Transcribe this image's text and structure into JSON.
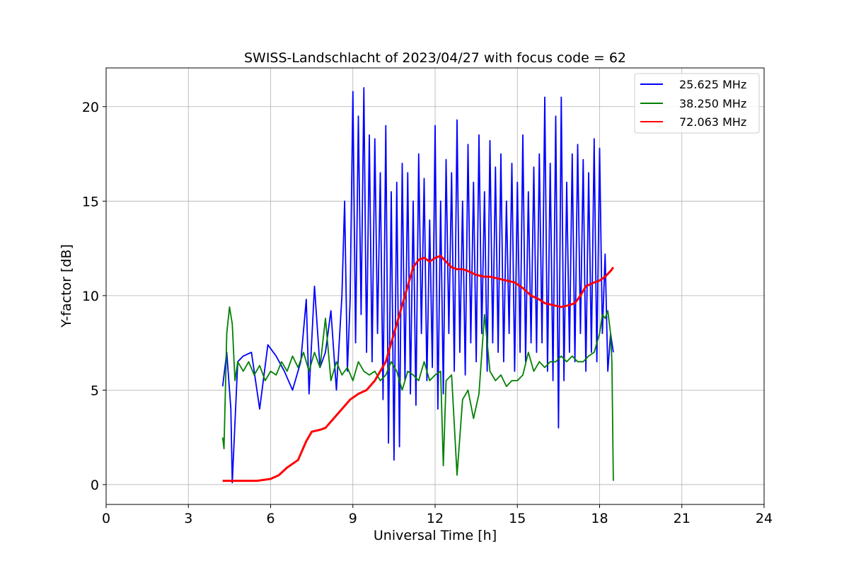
{
  "chart_data": {
    "type": "line",
    "title": "SWISS-Landschlacht of 2023/04/27 with focus code = 62",
    "xlabel": "Universal Time [h]",
    "ylabel": "Y-factor [dB]",
    "xlim": [
      0,
      24
    ],
    "ylim": [
      -1.05,
      22.05
    ],
    "xticks": [
      0,
      3,
      6,
      9,
      12,
      15,
      18,
      21,
      24
    ],
    "yticks": [
      0,
      5,
      10,
      15,
      20
    ],
    "grid": true,
    "legend_position": "top-right",
    "series": [
      {
        "name": "25.625 MHz",
        "color": "#0000ff",
        "x": [
          4.25,
          4.4,
          4.55,
          4.6,
          4.8,
          5.0,
          5.3,
          5.6,
          5.9,
          6.2,
          6.5,
          6.8,
          7.1,
          7.3,
          7.4,
          7.6,
          7.8,
          8.0,
          8.2,
          8.4,
          8.6,
          8.7,
          8.8,
          8.9,
          9.0,
          9.1,
          9.2,
          9.3,
          9.4,
          9.5,
          9.6,
          9.7,
          9.8,
          9.9,
          10.0,
          10.1,
          10.2,
          10.3,
          10.4,
          10.5,
          10.6,
          10.7,
          10.8,
          10.9,
          11.0,
          11.1,
          11.2,
          11.3,
          11.4,
          11.5,
          11.6,
          11.7,
          11.8,
          11.9,
          12.0,
          12.1,
          12.2,
          12.3,
          12.4,
          12.5,
          12.6,
          12.7,
          12.8,
          12.9,
          13.0,
          13.1,
          13.2,
          13.3,
          13.4,
          13.5,
          13.6,
          13.7,
          13.8,
          13.9,
          14.0,
          14.1,
          14.2,
          14.3,
          14.4,
          14.5,
          14.6,
          14.7,
          14.8,
          14.9,
          15.0,
          15.1,
          15.2,
          15.3,
          15.4,
          15.5,
          15.6,
          15.7,
          15.8,
          15.9,
          16.0,
          16.1,
          16.2,
          16.3,
          16.4,
          16.5,
          16.6,
          16.7,
          16.8,
          16.9,
          17.0,
          17.1,
          17.2,
          17.3,
          17.4,
          17.5,
          17.6,
          17.7,
          17.8,
          17.9,
          18.0,
          18.1,
          18.2,
          18.3,
          18.4,
          18.5
        ],
        "y": [
          5.2,
          7.0,
          4.0,
          0.1,
          6.5,
          6.8,
          7.0,
          4.0,
          7.4,
          6.8,
          6.0,
          5.0,
          6.5,
          9.8,
          4.8,
          10.5,
          6.2,
          7.0,
          9.2,
          5.0,
          10.0,
          15.0,
          6.0,
          9.8,
          20.8,
          7.5,
          19.5,
          9.0,
          21.0,
          7.0,
          18.5,
          6.5,
          18.3,
          8.0,
          16.5,
          4.5,
          19.0,
          2.2,
          15.5,
          1.3,
          16.0,
          2.0,
          17.0,
          5.5,
          16.5,
          4.8,
          15.0,
          4.2,
          17.5,
          8.0,
          16.2,
          5.5,
          14.0,
          6.2,
          19.0,
          4.0,
          15.0,
          4.8,
          17.2,
          8.0,
          16.5,
          6.0,
          19.3,
          7.0,
          15.0,
          5.8,
          18.0,
          7.5,
          16.0,
          6.5,
          18.5,
          8.0,
          15.5,
          6.0,
          18.2,
          7.5,
          16.8,
          7.0,
          17.5,
          6.5,
          15.0,
          8.0,
          17.0,
          6.0,
          16.0,
          7.0,
          18.5,
          6.5,
          15.5,
          7.5,
          16.8,
          7.0,
          17.5,
          7.5,
          20.5,
          6.0,
          17.0,
          5.5,
          19.5,
          3.0,
          20.5,
          5.5,
          16.0,
          7.0,
          17.5,
          6.5,
          18.0,
          8.0,
          17.2,
          6.0,
          16.5,
          7.0,
          18.3,
          6.5,
          17.8,
          8.0,
          12.2,
          6.0,
          8.0,
          7.0
        ]
      },
      {
        "name": "38.250 MHz",
        "color": "#008000",
        "x": [
          4.25,
          4.3,
          4.4,
          4.5,
          4.6,
          4.7,
          4.8,
          5.0,
          5.2,
          5.4,
          5.6,
          5.8,
          6.0,
          6.2,
          6.4,
          6.6,
          6.8,
          7.0,
          7.2,
          7.4,
          7.6,
          7.8,
          8.0,
          8.2,
          8.4,
          8.6,
          8.8,
          9.0,
          9.2,
          9.4,
          9.6,
          9.8,
          10.0,
          10.2,
          10.4,
          10.6,
          10.8,
          11.0,
          11.2,
          11.4,
          11.6,
          11.8,
          12.0,
          12.2,
          12.3,
          12.4,
          12.6,
          12.8,
          13.0,
          13.2,
          13.4,
          13.6,
          13.8,
          14.0,
          14.2,
          14.4,
          14.6,
          14.8,
          15.0,
          15.2,
          15.4,
          15.6,
          15.8,
          16.0,
          16.2,
          16.4,
          16.6,
          16.8,
          17.0,
          17.2,
          17.4,
          17.6,
          17.8,
          18.0,
          18.1,
          18.2,
          18.3,
          18.4,
          18.45,
          18.5
        ],
        "y": [
          2.5,
          1.9,
          8.0,
          9.4,
          8.5,
          5.5,
          6.5,
          6.0,
          6.5,
          5.8,
          6.3,
          5.5,
          6.0,
          5.8,
          6.5,
          6.0,
          6.8,
          6.2,
          7.0,
          6.0,
          7.0,
          6.2,
          8.8,
          5.5,
          6.5,
          5.8,
          6.2,
          5.5,
          6.5,
          6.0,
          5.8,
          6.0,
          5.5,
          5.8,
          6.5,
          6.0,
          5.0,
          6.0,
          5.8,
          5.5,
          6.5,
          5.5,
          5.8,
          6.0,
          1.0,
          5.5,
          5.8,
          0.5,
          4.5,
          5.0,
          3.5,
          4.8,
          9.0,
          6.0,
          5.5,
          5.8,
          5.2,
          5.5,
          5.5,
          5.8,
          7.0,
          6.0,
          6.5,
          6.2,
          6.5,
          6.5,
          6.8,
          6.5,
          6.8,
          6.5,
          6.5,
          6.8,
          7.0,
          8.0,
          9.0,
          8.8,
          9.2,
          8.0,
          6.5,
          0.2
        ]
      },
      {
        "name": "72.063 MHz",
        "color": "#ff0000",
        "x": [
          4.25,
          4.5,
          5.0,
          5.5,
          6.0,
          6.3,
          6.6,
          7.0,
          7.3,
          7.5,
          7.8,
          8.0,
          8.3,
          8.6,
          8.9,
          9.2,
          9.5,
          9.8,
          10.0,
          10.2,
          10.4,
          10.6,
          10.8,
          11.0,
          11.2,
          11.4,
          11.6,
          11.8,
          12.0,
          12.2,
          12.4,
          12.6,
          12.8,
          13.0,
          13.2,
          13.5,
          13.8,
          14.0,
          14.3,
          14.6,
          14.9,
          15.2,
          15.5,
          15.8,
          16.0,
          16.3,
          16.6,
          16.9,
          17.1,
          17.3,
          17.5,
          17.8,
          18.0,
          18.2,
          18.4,
          18.5
        ],
        "y": [
          0.2,
          0.2,
          0.2,
          0.2,
          0.3,
          0.5,
          0.9,
          1.3,
          2.3,
          2.8,
          2.9,
          3.0,
          3.5,
          4.0,
          4.5,
          4.8,
          5.0,
          5.5,
          6.0,
          6.5,
          7.5,
          8.5,
          9.5,
          10.5,
          11.5,
          11.9,
          12.0,
          11.8,
          12.0,
          12.1,
          11.8,
          11.5,
          11.4,
          11.4,
          11.3,
          11.1,
          11.0,
          11.0,
          10.9,
          10.8,
          10.7,
          10.4,
          10.0,
          9.8,
          9.6,
          9.5,
          9.4,
          9.5,
          9.6,
          10.0,
          10.5,
          10.7,
          10.8,
          11.0,
          11.3,
          11.5
        ]
      }
    ]
  }
}
